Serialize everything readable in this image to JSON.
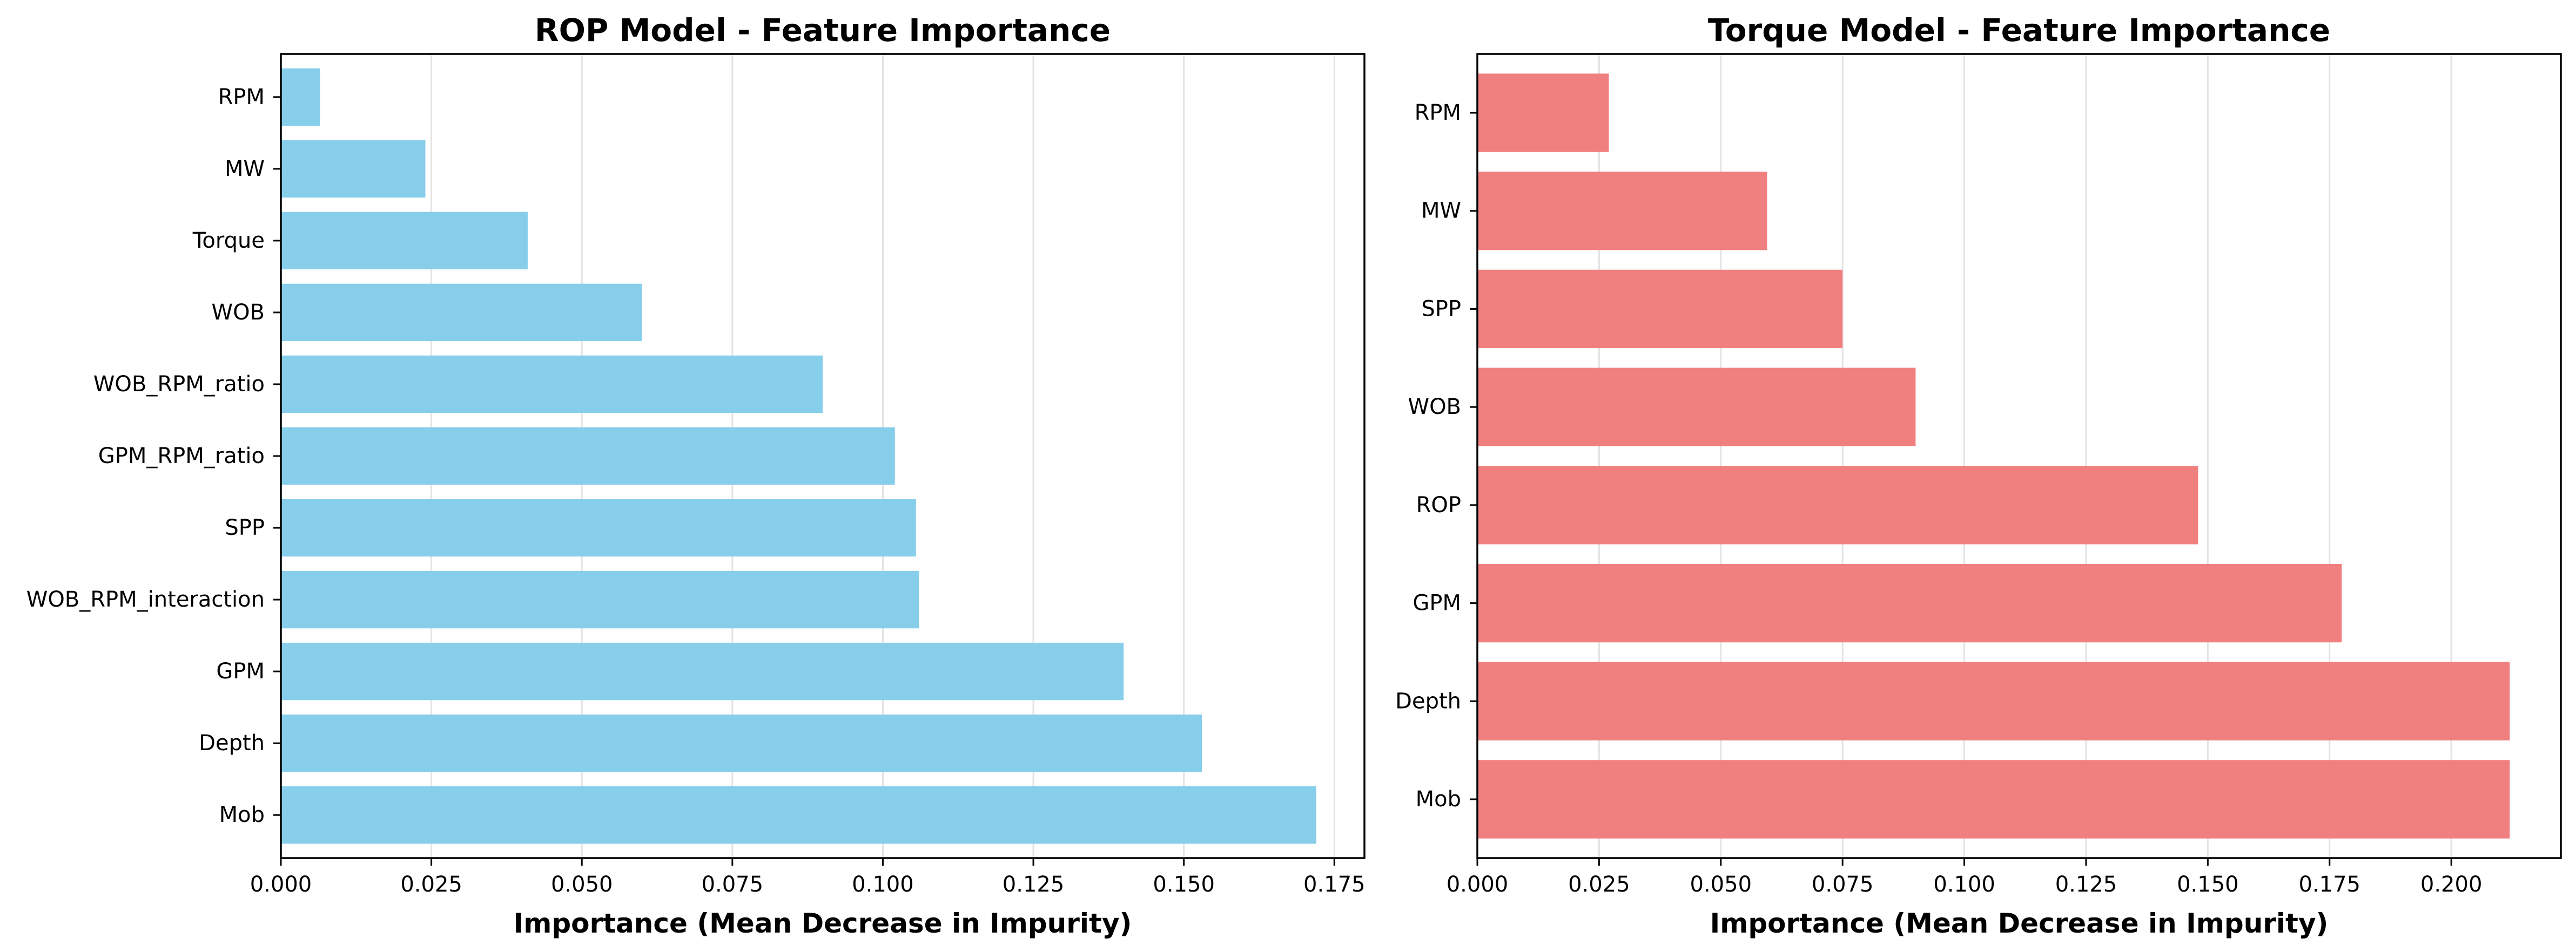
{
  "chart_data": [
    {
      "type": "bar",
      "orientation": "horizontal",
      "title": "ROP Model - Feature Importance",
      "xlabel": "Importance (Mean Decrease in Impurity)",
      "ylabel": "",
      "categories": [
        "Mob",
        "Depth",
        "GPM",
        "WOB_RPM_interaction",
        "SPP",
        "GPM_RPM_ratio",
        "WOB_RPM_ratio",
        "WOB",
        "Torque",
        "MW",
        "RPM"
      ],
      "values": [
        0.172,
        0.153,
        0.14,
        0.106,
        0.1055,
        0.102,
        0.09,
        0.06,
        0.041,
        0.024,
        0.0065
      ],
      "xlim": [
        0,
        0.18
      ],
      "xticks": [
        0.0,
        0.025,
        0.05,
        0.075,
        0.1,
        0.125,
        0.15,
        0.175
      ],
      "xtick_labels": [
        "0.000",
        "0.025",
        "0.050",
        "0.075",
        "0.100",
        "0.125",
        "0.150",
        "0.175"
      ],
      "grid": "x",
      "color": "#87ceeb"
    },
    {
      "type": "bar",
      "orientation": "horizontal",
      "title": "Torque Model - Feature Importance",
      "xlabel": "Importance (Mean Decrease in Impurity)",
      "ylabel": "",
      "categories": [
        "Mob",
        "Depth",
        "GPM",
        "ROP",
        "WOB",
        "SPP",
        "MW",
        "RPM"
      ],
      "values": [
        0.212,
        0.212,
        0.1775,
        0.148,
        0.09,
        0.075,
        0.0595,
        0.027
      ],
      "xlim": [
        0,
        0.2225
      ],
      "xticks": [
        0.0,
        0.025,
        0.05,
        0.075,
        0.1,
        0.125,
        0.15,
        0.175,
        0.2
      ],
      "xtick_labels": [
        "0.000",
        "0.025",
        "0.050",
        "0.075",
        "0.100",
        "0.125",
        "0.150",
        "0.175",
        "0.200"
      ],
      "grid": "x",
      "color": "#f08080"
    }
  ]
}
